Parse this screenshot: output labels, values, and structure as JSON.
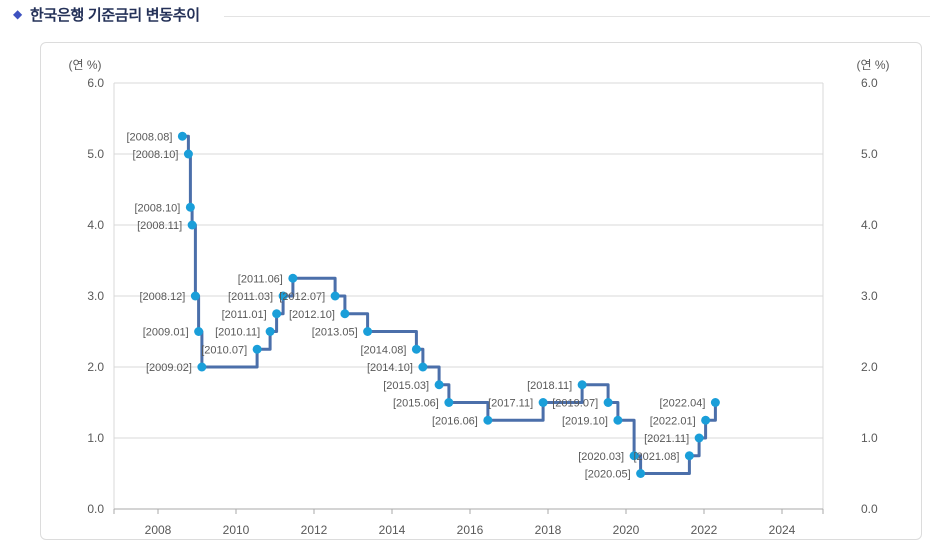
{
  "header": {
    "bullet": "◆",
    "title": "한국은행 기준금리 변동추이"
  },
  "chart_data": {
    "type": "line",
    "subtype": "step-after",
    "title": "한국은행 기준금리 변동추이",
    "series_name": "기준금리",
    "unit_label_left": "(연 %)",
    "unit_label_right": "(연 %)",
    "ylim": [
      0.0,
      6.0
    ],
    "xlim": [
      2006.9,
      2025.1
    ],
    "grid": "horizontal",
    "legend": "none",
    "yticks": [
      {
        "value": 0,
        "label": "0.0"
      },
      {
        "value": 1,
        "label": "1.0"
      },
      {
        "value": 2,
        "label": "2.0"
      },
      {
        "value": 3,
        "label": "3.0"
      },
      {
        "value": 4,
        "label": "4.0"
      },
      {
        "value": 5,
        "label": "5.0"
      },
      {
        "value": 6,
        "label": "6.0"
      }
    ],
    "xticks": [
      {
        "value": 2008,
        "label": "2008"
      },
      {
        "value": 2010,
        "label": "2010"
      },
      {
        "value": 2012,
        "label": "2012"
      },
      {
        "value": 2014,
        "label": "2014"
      },
      {
        "value": 2016,
        "label": "2016"
      },
      {
        "value": 2018,
        "label": "2018"
      },
      {
        "value": 2020,
        "label": "2020"
      },
      {
        "value": 2022,
        "label": "2022"
      },
      {
        "value": 2024,
        "label": "2024"
      }
    ],
    "points": [
      {
        "label": "[2008.08]",
        "x": 2008.625,
        "y": 5.25
      },
      {
        "label": "[2008.10]",
        "x": 2008.78,
        "y": 5.0
      },
      {
        "label": "[2008.10]",
        "x": 2008.83,
        "y": 4.25
      },
      {
        "label": "[2008.11]",
        "x": 2008.875,
        "y": 4.0
      },
      {
        "label": "[2008.12]",
        "x": 2008.958,
        "y": 3.0
      },
      {
        "label": "[2009.01]",
        "x": 2009.042,
        "y": 2.5
      },
      {
        "label": "[2009.02]",
        "x": 2009.125,
        "y": 2.0
      },
      {
        "label": "[2010.07]",
        "x": 2010.542,
        "y": 2.25
      },
      {
        "label": "[2010.11]",
        "x": 2010.875,
        "y": 2.5
      },
      {
        "label": "[2011.01]",
        "x": 2011.042,
        "y": 2.75
      },
      {
        "label": "[2011.03]",
        "x": 2011.208,
        "y": 3.0
      },
      {
        "label": "[2011.06]",
        "x": 2011.458,
        "y": 3.25
      },
      {
        "label": "[2012.07]",
        "x": 2012.542,
        "y": 3.0
      },
      {
        "label": "[2012.10]",
        "x": 2012.792,
        "y": 2.75
      },
      {
        "label": "[2013.05]",
        "x": 2013.375,
        "y": 2.5
      },
      {
        "label": "[2014.08]",
        "x": 2014.625,
        "y": 2.25
      },
      {
        "label": "[2014.10]",
        "x": 2014.792,
        "y": 2.0
      },
      {
        "label": "[2015.03]",
        "x": 2015.208,
        "y": 1.75
      },
      {
        "label": "[2015.06]",
        "x": 2015.458,
        "y": 1.5
      },
      {
        "label": "[2016.06]",
        "x": 2016.458,
        "y": 1.25
      },
      {
        "label": "[2017.11]",
        "x": 2017.875,
        "y": 1.5
      },
      {
        "label": "[2018.11]",
        "x": 2018.875,
        "y": 1.75
      },
      {
        "label": "[2019.07]",
        "x": 2019.542,
        "y": 1.5
      },
      {
        "label": "[2019.10]",
        "x": 2019.792,
        "y": 1.25
      },
      {
        "label": "[2020.03]",
        "x": 2020.208,
        "y": 0.75
      },
      {
        "label": "[2020.05]",
        "x": 2020.375,
        "y": 0.5
      },
      {
        "label": "[2021.08]",
        "x": 2021.625,
        "y": 0.75
      },
      {
        "label": "[2021.11]",
        "x": 2021.875,
        "y": 1.0
      },
      {
        "label": "[2022.01]",
        "x": 2022.042,
        "y": 1.25
      },
      {
        "label": "[2022.04]",
        "x": 2022.292,
        "y": 1.5
      }
    ],
    "colors": {
      "line": "#4b6faa",
      "marker": "#1a9ed9",
      "grid": "#d9d9d9",
      "axis": "#aaaaaa",
      "tick_text": "#595959",
      "point_label_text": "#595959",
      "title_text": "#243158",
      "bullet": "#3e52c0",
      "panel_border": "#dcdcdc"
    }
  }
}
